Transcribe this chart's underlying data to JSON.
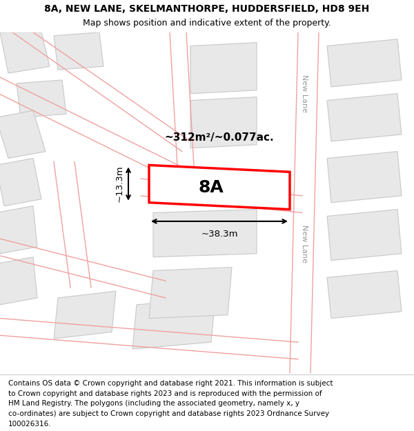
{
  "title_line1": "8A, NEW LANE, SKELMANTHORPE, HUDDERSFIELD, HD8 9EH",
  "title_line2": "Map shows position and indicative extent of the property.",
  "footer_lines": [
    "Contains OS data © Crown copyright and database right 2021. This information is subject",
    "to Crown copyright and database rights 2023 and is reproduced with the permission of",
    "HM Land Registry. The polygons (including the associated geometry, namely x, y",
    "co-ordinates) are subject to Crown copyright and database rights 2023 Ordnance Survey",
    "100026316."
  ],
  "area_label": "~312m²/~0.077ac.",
  "plot_label": "8A",
  "dim_width": "~38.3m",
  "dim_height": "~13.3m",
  "road_label": "New Lane",
  "map_bg": "#ffffff",
  "building_fill": "#e8e8e8",
  "building_stroke": "#c8c8c8",
  "road_line_color": "#f0a0a0",
  "highlight_plot_color": "#ff0000",
  "highlight_plot_fill": "#ffffff",
  "dim_line_color": "#000000",
  "title_fontsize": 10,
  "subtitle_fontsize": 9,
  "footer_fontsize": 7.5,
  "area_label_fontsize": 11,
  "plot_label_fontsize": 18,
  "road_label_fontsize": 8,
  "dim_fontsize": 9.5
}
